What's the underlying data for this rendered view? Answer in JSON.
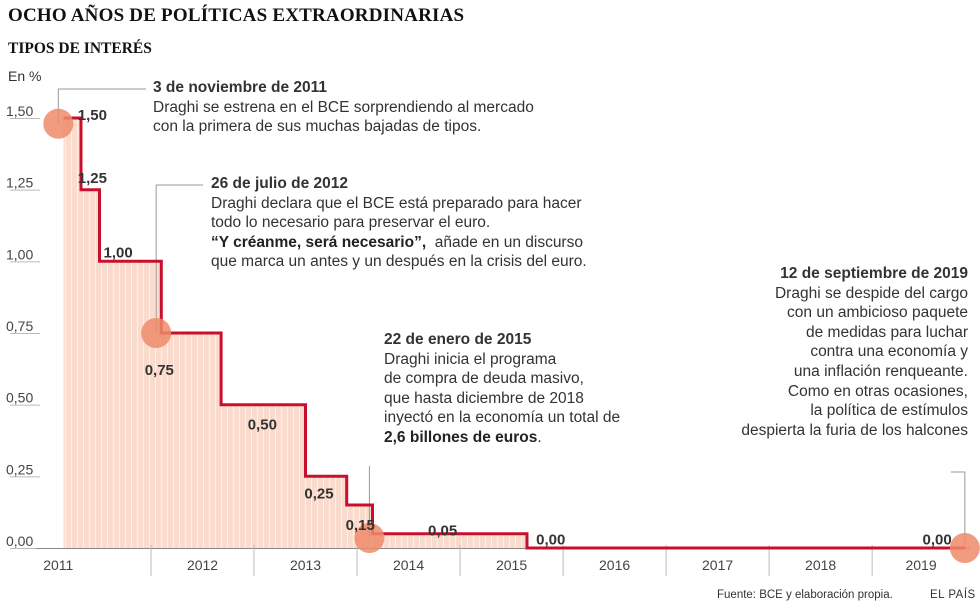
{
  "title": "OCHO AÑOS DE POLÍTICAS EXTRAORDINARIAS",
  "subtitle": "TIPOS DE INTERÉS",
  "unit": "En %",
  "source": "Fuente: BCE y elaboración propia.",
  "brand": "EL PAÍS",
  "colors": {
    "line": "#c8102e",
    "fill": "#f9dccd",
    "marker": "#ee8a6a",
    "guide": "#999999"
  },
  "chart_data": {
    "type": "area",
    "step": true,
    "title": "TIPOS DE INTERÉS",
    "ylabel": "En %",
    "ylim": [
      0,
      1.5
    ],
    "xlim": [
      2011.0,
      2019.95
    ],
    "yticks": [
      {
        "v": 0,
        "label": "0,00"
      },
      {
        "v": 0.25,
        "label": "0,25"
      },
      {
        "v": 0.5,
        "label": "0,50"
      },
      {
        "v": 0.75,
        "label": "0,75"
      },
      {
        "v": 1.0,
        "label": "1,00"
      },
      {
        "v": 1.25,
        "label": "1,25"
      },
      {
        "v": 1.5,
        "label": "1,50"
      }
    ],
    "xticks": [
      "2011",
      "2012",
      "2013",
      "2014",
      "2015",
      "2016",
      "2017",
      "2018",
      "2019"
    ],
    "steps": [
      {
        "x": 2011.15,
        "y": 1.5
      },
      {
        "x": 2011.32,
        "y": 1.25
      },
      {
        "x": 2011.5,
        "y": 1.0
      },
      {
        "x": 2012.1,
        "y": 0.75
      },
      {
        "x": 2012.68,
        "y": 0.5
      },
      {
        "x": 2013.5,
        "y": 0.25
      },
      {
        "x": 2013.9,
        "y": 0.15
      },
      {
        "x": 2014.15,
        "y": 0.05
      },
      {
        "x": 2015.65,
        "y": 0.0
      }
    ],
    "end_x": 2019.9,
    "value_labels": [
      {
        "x": 2011.25,
        "y": 1.5,
        "text": "1,50"
      },
      {
        "x": 2011.25,
        "y": 1.28,
        "text": "1,25"
      },
      {
        "x": 2011.5,
        "y": 1.02,
        "text": "1,00"
      },
      {
        "x": 2011.9,
        "y": 0.61,
        "text": "0,75"
      },
      {
        "x": 2012.9,
        "y": 0.42,
        "text": "0,50"
      },
      {
        "x": 2013.45,
        "y": 0.18,
        "text": "0,25"
      },
      {
        "x": 2013.85,
        "y": 0.07,
        "text": "0,15"
      },
      {
        "x": 2014.65,
        "y": 0.05,
        "text": "0,05"
      },
      {
        "x": 2015.7,
        "y": 0.02,
        "text": "0,00"
      },
      {
        "x": 2019.45,
        "y": 0.02,
        "text": "0,00"
      }
    ],
    "markers": [
      {
        "x": 2011.1,
        "y": 1.48
      },
      {
        "x": 2012.05,
        "y": 0.75
      },
      {
        "x": 2014.12,
        "y": 0.035
      },
      {
        "x": 2019.9,
        "y": 0.0
      }
    ]
  },
  "annotations": [
    {
      "date": "3 de noviembre de 2011",
      "lines": [
        "Draghi se estrena en el BCE sorprendiendo al mercado",
        "con la primera de sus muchas bajadas de tipos."
      ]
    },
    {
      "date": "26 de julio de 2012",
      "lines": [
        "Draghi declara que el BCE está preparado para hacer",
        "todo lo necesario para preservar el euro."
      ],
      "quote": "“Y créanme, será necesario”,",
      "quote_tail": "añade en un discurso",
      "lines2": [
        "que marca un antes y un después en la crisis del euro."
      ]
    },
    {
      "date": "22 de enero de 2015",
      "lines": [
        "Draghi inicia el programa",
        "de compra de deuda masivo,",
        "que hasta diciembre de 2018",
        "inyectó en la economía un total de"
      ],
      "bold": "2,6 billones de euros",
      "tail": "."
    },
    {
      "date": "12 de septiembre de 2019",
      "lines": [
        "Draghi se despide del cargo",
        "con un ambicioso paquete",
        "de medidas para luchar",
        "contra una economía y",
        "una inflación renqueante.",
        "Como en otras ocasiones,",
        "la política de estímulos",
        "despierta la furia de los halcones"
      ]
    }
  ]
}
